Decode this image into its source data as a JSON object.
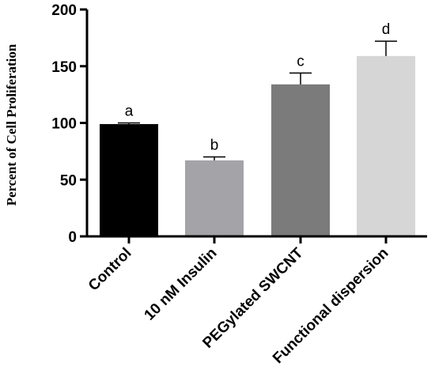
{
  "chart_data": {
    "type": "bar",
    "title": "",
    "xlabel": "",
    "ylabel": "Percent of Cell Proliferation",
    "ylim": [
      0,
      200
    ],
    "yticks": [
      0,
      50,
      100,
      150,
      200
    ],
    "grid": false,
    "legend": "none",
    "categories": [
      "Control",
      "10 nM Insulin",
      "PEGylated SWCNT",
      "Functional dispersion"
    ],
    "values": [
      99,
      67,
      134,
      159
    ],
    "errors": [
      1,
      3,
      10,
      13
    ],
    "significance_labels": [
      "a",
      "b",
      "c",
      "d"
    ],
    "colors": [
      "#000000",
      "#a3a3a8",
      "#7b7b7b",
      "#d6d6d6"
    ]
  }
}
